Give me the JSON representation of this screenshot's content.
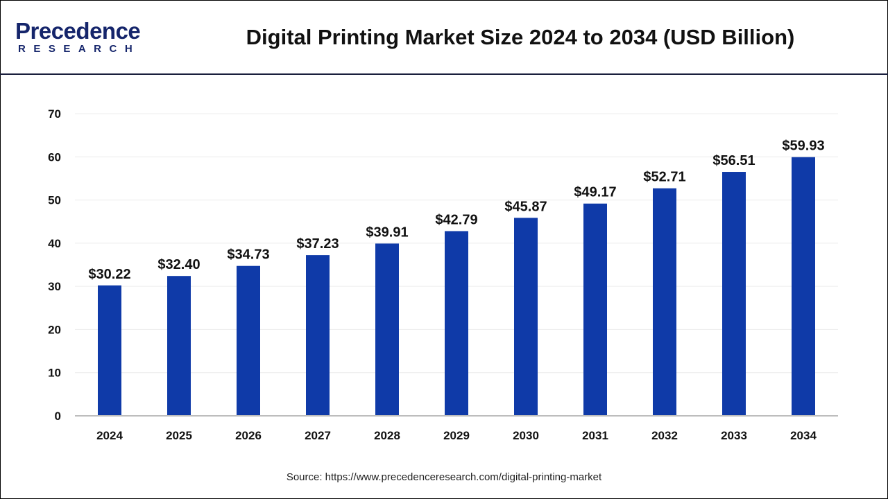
{
  "header": {
    "logo_text_top": "Precedence",
    "logo_text_bottom": "RESEARCH",
    "title": "Digital Printing Market Size 2024 to 2034 (USD Billion)"
  },
  "source": "Source: https://www.precedenceresearch.com/digital-printing-market",
  "colors": {
    "bar": "#0f3aa8",
    "logo_dark": "#15256b",
    "logo_accent": "#2a6fe0"
  },
  "chart_data": {
    "type": "bar",
    "title": "Digital Printing Market Size 2024 to 2034 (USD Billion)",
    "xlabel": "",
    "ylabel": "",
    "categories": [
      "2024",
      "2025",
      "2026",
      "2027",
      "2028",
      "2029",
      "2030",
      "2031",
      "2032",
      "2033",
      "2034"
    ],
    "values": [
      30.22,
      32.4,
      34.73,
      37.23,
      39.91,
      42.79,
      45.87,
      49.17,
      52.71,
      56.51,
      59.93
    ],
    "data_labels": [
      "$30.22",
      "$32.40",
      "$34.73",
      "$37.23",
      "$39.91",
      "$42.79",
      "$45.87",
      "$49.17",
      "$52.71",
      "$56.51",
      "$59.93"
    ],
    "ylim": [
      0,
      70
    ],
    "yticks": [
      0,
      10,
      20,
      30,
      40,
      50,
      60,
      70
    ],
    "grid": true,
    "legend": "none"
  }
}
